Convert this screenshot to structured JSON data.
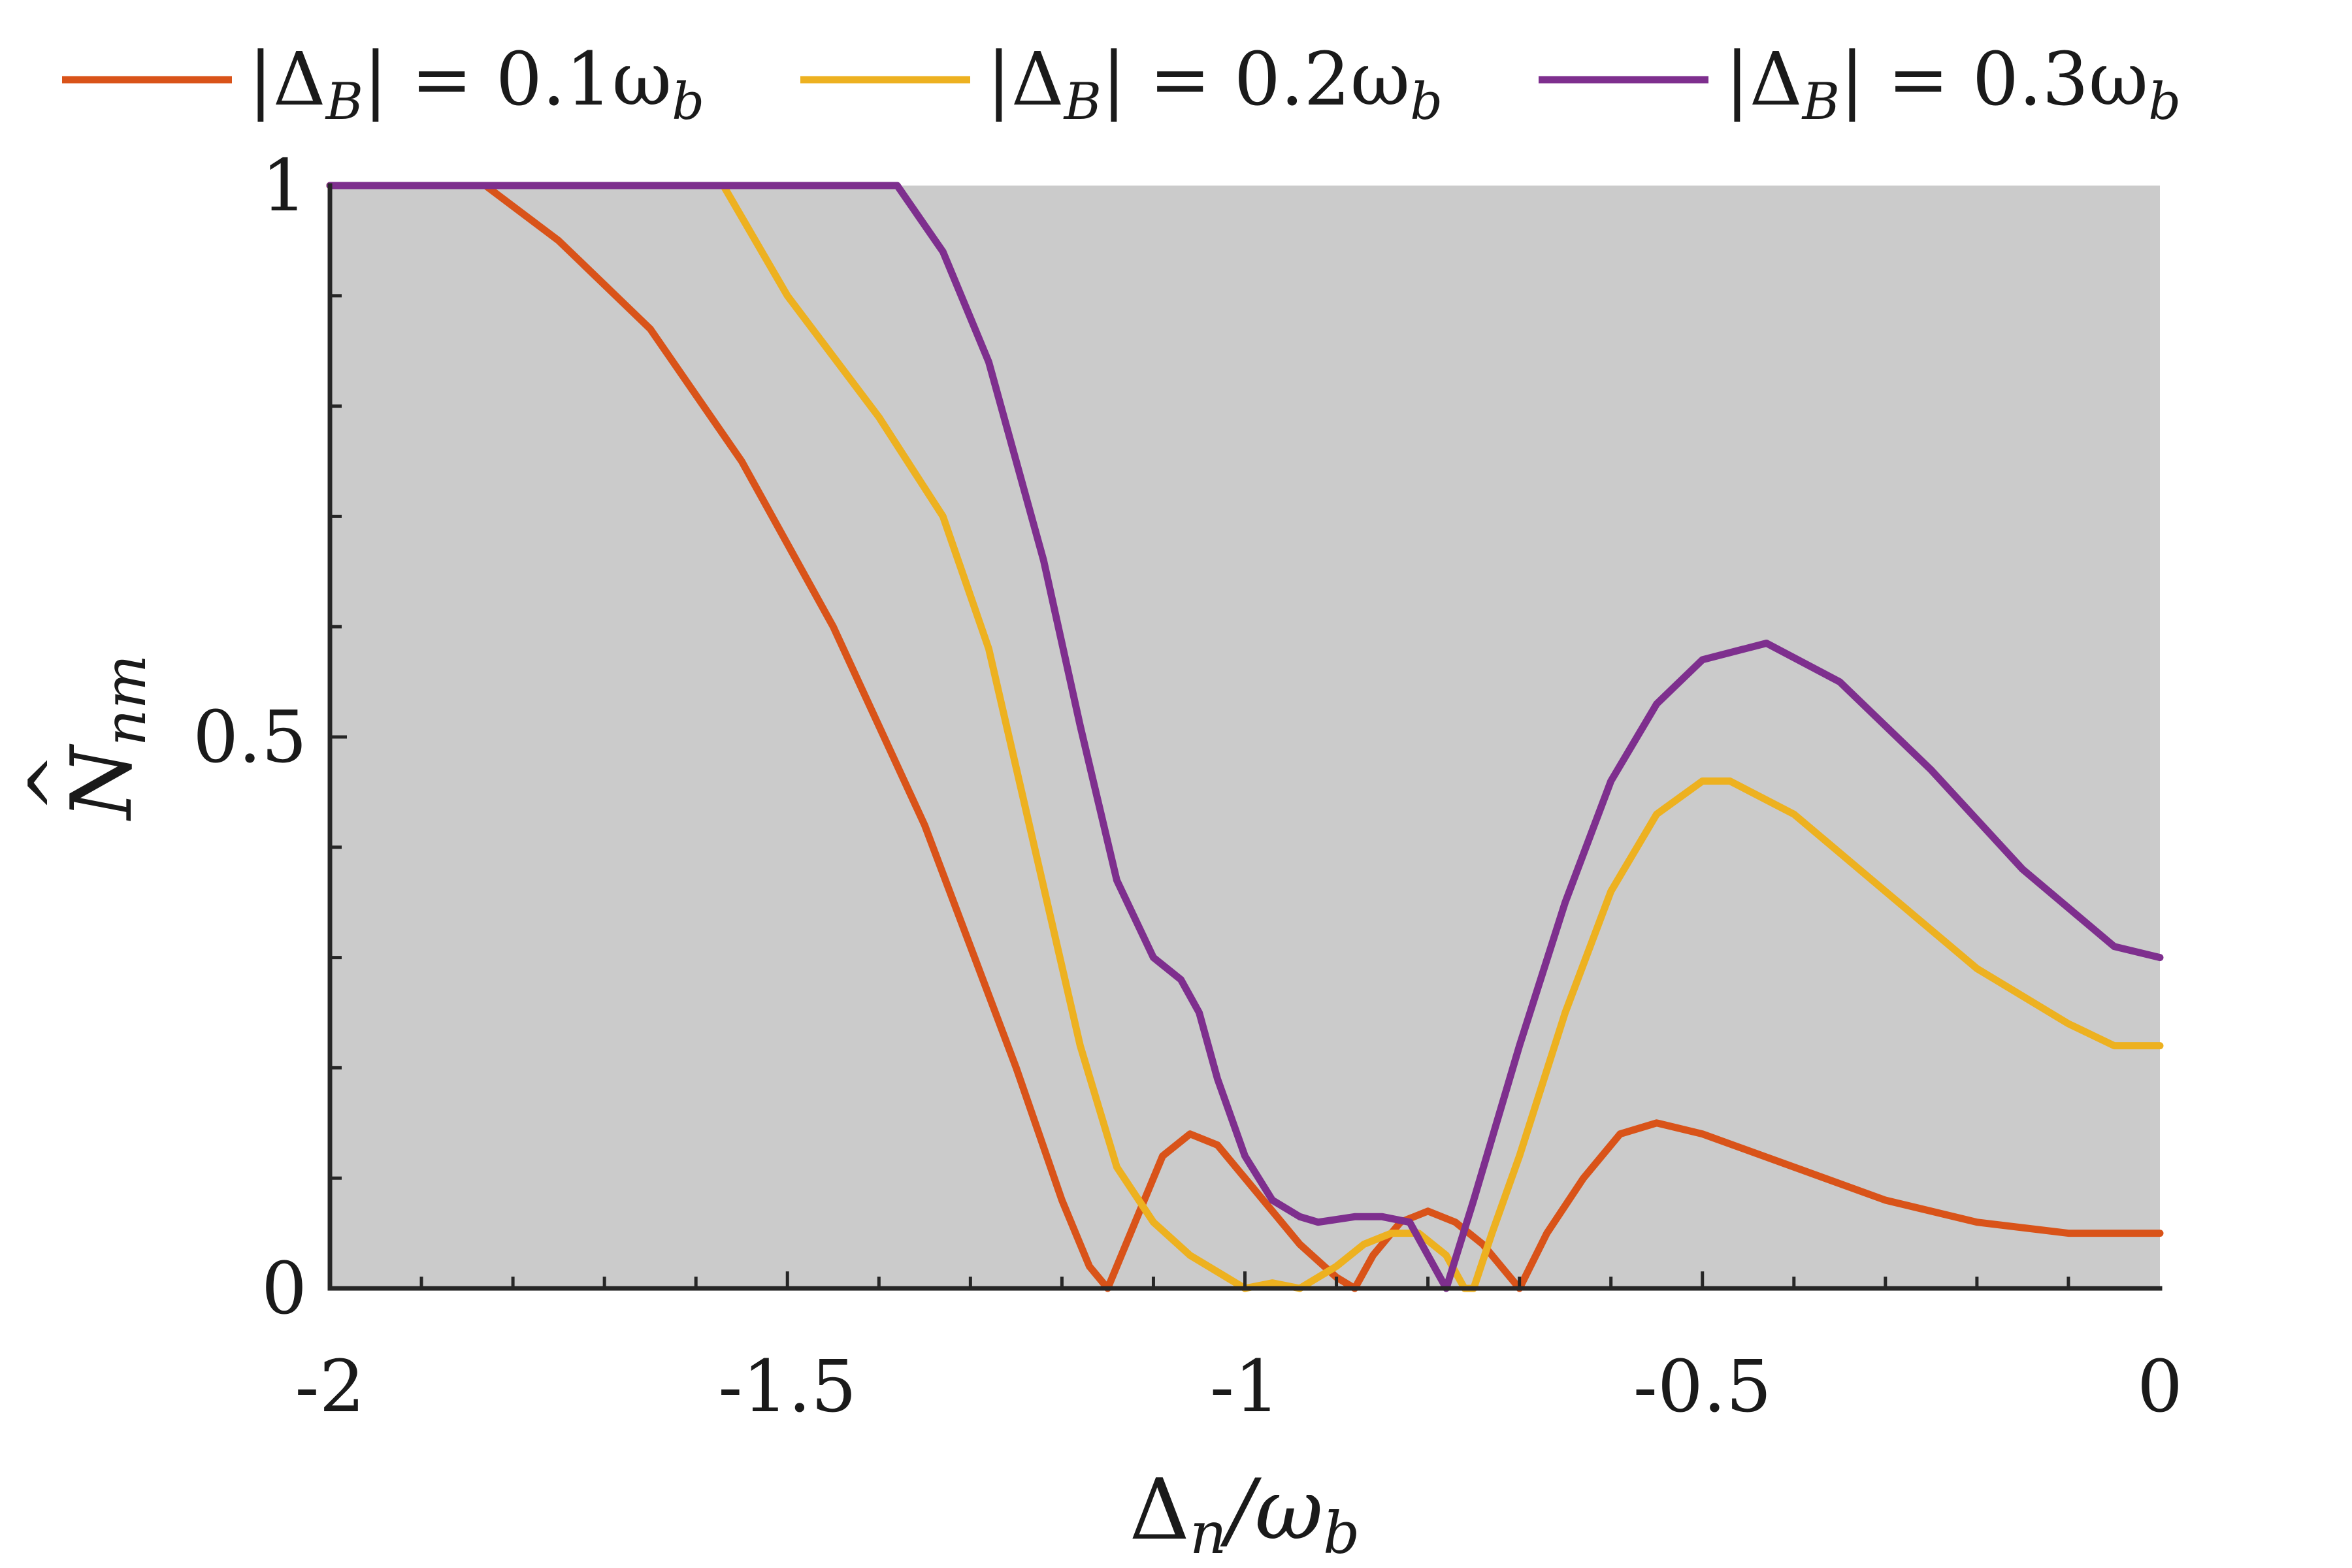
{
  "chart_data": {
    "type": "line",
    "xlim": [
      -2,
      0
    ],
    "ylim": [
      0,
      1
    ],
    "x_ticks": [
      -2,
      -1.5,
      -1,
      -0.5,
      0
    ],
    "x_tick_labels": [
      "-2",
      "-1.5",
      "-1",
      "-0.5",
      "0"
    ],
    "y_ticks": [
      0,
      0.5,
      1
    ],
    "y_tick_labels": [
      "0",
      "0.5",
      "1"
    ],
    "x_minor_step": 0.1,
    "y_minor_step": 0.1,
    "xlabel": {
      "main": "Δ",
      "sub": "n",
      "div": "/ω",
      "sub2": "b"
    },
    "ylabel": {
      "main": "N",
      "sub": "nm",
      "hat": "^"
    },
    "legend_position": "top",
    "plot_background": "#cbcbcb",
    "grid": false,
    "series": [
      {
        "legend": {
          "prefix": "|Δ",
          "sub": "B",
          "mid": "| = 0.1ω",
          "sub2": "b"
        },
        "color": "#d95319",
        "x": [
          -2.0,
          -1.83,
          -1.75,
          -1.65,
          -1.55,
          -1.45,
          -1.35,
          -1.25,
          -1.2,
          -1.17,
          -1.15,
          -1.12,
          -1.09,
          -1.06,
          -1.03,
          -1.0,
          -0.97,
          -0.94,
          -0.9,
          -0.88,
          -0.86,
          -0.83,
          -0.8,
          -0.77,
          -0.74,
          -0.71,
          -0.7,
          -0.67,
          -0.63,
          -0.59,
          -0.55,
          -0.5,
          -0.4,
          -0.3,
          -0.2,
          -0.1,
          -0.05,
          0.0
        ],
        "y": [
          1.0,
          1.0,
          0.95,
          0.87,
          0.75,
          0.6,
          0.42,
          0.2,
          0.08,
          0.02,
          0.0,
          0.06,
          0.12,
          0.14,
          0.13,
          0.1,
          0.07,
          0.04,
          0.01,
          0.0,
          0.03,
          0.06,
          0.07,
          0.06,
          0.04,
          0.01,
          0.0,
          0.05,
          0.1,
          0.14,
          0.15,
          0.14,
          0.11,
          0.08,
          0.06,
          0.05,
          0.05,
          0.05
        ]
      },
      {
        "legend": {
          "prefix": "|Δ",
          "sub": "B",
          "mid": "| = 0.2ω",
          "sub2": "b"
        },
        "color": "#edb120",
        "x": [
          -2.0,
          -1.57,
          -1.5,
          -1.4,
          -1.33,
          -1.28,
          -1.23,
          -1.18,
          -1.14,
          -1.1,
          -1.06,
          -1.02,
          -1.0,
          -0.97,
          -0.94,
          -0.92,
          -0.9,
          -0.87,
          -0.84,
          -0.81,
          -0.78,
          -0.76,
          -0.75,
          -0.73,
          -0.7,
          -0.65,
          -0.6,
          -0.55,
          -0.5,
          -0.47,
          -0.4,
          -0.3,
          -0.2,
          -0.1,
          -0.05,
          0.0
        ],
        "y": [
          1.0,
          1.0,
          0.9,
          0.79,
          0.7,
          0.58,
          0.4,
          0.22,
          0.11,
          0.06,
          0.03,
          0.01,
          0.0,
          0.005,
          0.0,
          0.01,
          0.02,
          0.04,
          0.05,
          0.05,
          0.03,
          0.0,
          0.0,
          0.05,
          0.12,
          0.25,
          0.36,
          0.43,
          0.46,
          0.46,
          0.43,
          0.36,
          0.29,
          0.24,
          0.22,
          0.22
        ]
      },
      {
        "legend": {
          "prefix": "|Δ",
          "sub": "B",
          "mid": "| = 0.3ω",
          "sub2": "b"
        },
        "color": "#7e2f8e",
        "x": [
          -2.0,
          -1.38,
          -1.33,
          -1.28,
          -1.22,
          -1.18,
          -1.14,
          -1.1,
          -1.07,
          -1.05,
          -1.03,
          -1.0,
          -0.97,
          -0.94,
          -0.92,
          -0.88,
          -0.85,
          -0.82,
          -0.8,
          -0.78,
          -0.75,
          -0.7,
          -0.65,
          -0.6,
          -0.55,
          -0.5,
          -0.43,
          -0.35,
          -0.25,
          -0.15,
          -0.05,
          0.0
        ],
        "y": [
          1.0,
          1.0,
          0.94,
          0.84,
          0.66,
          0.51,
          0.37,
          0.3,
          0.28,
          0.25,
          0.19,
          0.12,
          0.08,
          0.065,
          0.06,
          0.065,
          0.065,
          0.06,
          0.03,
          0.0,
          0.08,
          0.22,
          0.35,
          0.46,
          0.53,
          0.57,
          0.585,
          0.55,
          0.47,
          0.38,
          0.31,
          0.3
        ]
      }
    ]
  }
}
